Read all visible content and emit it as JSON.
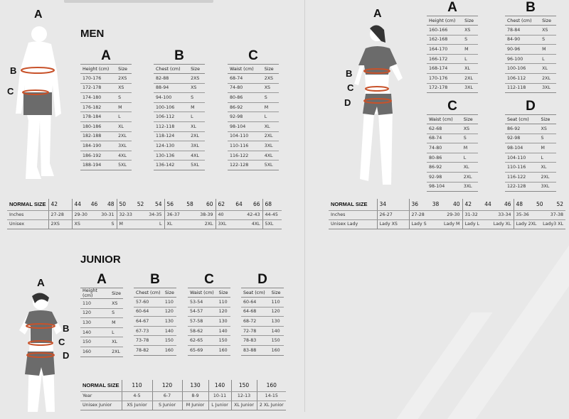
{
  "men": {
    "title": "MEN",
    "figure_labels": [
      "A",
      "B",
      "C"
    ],
    "tables": [
      {
        "letter": "A",
        "headers": [
          "Height (cm)",
          "Size"
        ],
        "rows": [
          [
            "170-176",
            "2XS"
          ],
          [
            "172-178",
            "XS"
          ],
          [
            "174-180",
            "S"
          ],
          [
            "176-182",
            "M"
          ],
          [
            "178-184",
            "L"
          ],
          [
            "180-186",
            "XL"
          ],
          [
            "182-188",
            "2XL"
          ],
          [
            "184-190",
            "3XL"
          ],
          [
            "186-192",
            "4XL"
          ],
          [
            "188-194",
            "5XL"
          ]
        ]
      },
      {
        "letter": "B",
        "headers": [
          "Chest (cm)",
          "Size"
        ],
        "rows": [
          [
            "82-88",
            "2XS"
          ],
          [
            "88-94",
            "XS"
          ],
          [
            "94-100",
            "S"
          ],
          [
            "100-106",
            "M"
          ],
          [
            "106-112",
            "L"
          ],
          [
            "112-118",
            "XL"
          ],
          [
            "118-124",
            "2XL"
          ],
          [
            "124-130",
            "3XL"
          ],
          [
            "130-136",
            "4XL"
          ],
          [
            "136-142",
            "5XL"
          ]
        ]
      },
      {
        "letter": "C",
        "headers": [
          "Waist (cm)",
          "Size"
        ],
        "rows": [
          [
            "68-74",
            "2XS"
          ],
          [
            "74-80",
            "XS"
          ],
          [
            "80-86",
            "S"
          ],
          [
            "86-92",
            "M"
          ],
          [
            "92-98",
            "L"
          ],
          [
            "98-104",
            "XL"
          ],
          [
            "104-110",
            "2XL"
          ],
          [
            "110-116",
            "3XL"
          ],
          [
            "116-122",
            "4XL"
          ],
          [
            "122-128",
            "5XL"
          ]
        ]
      }
    ],
    "normal_size": {
      "label": "NORMAL SIZE",
      "row_labels": [
        "Inches",
        "Unisex"
      ],
      "groups": [
        {
          "sizes": [
            "42"
          ],
          "inches": [
            "27-28"
          ],
          "unisex": [
            "2XS"
          ]
        },
        {
          "sizes": [
            "44",
            "46",
            "48"
          ],
          "inches": [
            "29-30",
            "30-31"
          ],
          "unisex": [
            "XS",
            "S"
          ]
        },
        {
          "sizes": [
            "50",
            "52",
            "54"
          ],
          "inches": [
            "32-33",
            "34-35"
          ],
          "unisex": [
            "M",
            "L"
          ]
        },
        {
          "sizes": [
            "56",
            "58",
            "60"
          ],
          "inches": [
            "36-37",
            "38-39"
          ],
          "unisex": [
            "XL",
            "2XL"
          ]
        },
        {
          "sizes": [
            "62",
            "64",
            "66"
          ],
          "inches": [
            "40",
            "42-43"
          ],
          "unisex": [
            "3XL",
            "4XL"
          ]
        },
        {
          "sizes": [
            "68"
          ],
          "inches": [
            "44-45"
          ],
          "unisex": [
            "5XL"
          ]
        }
      ]
    }
  },
  "women": {
    "figure_labels": [
      "A",
      "B",
      "C",
      "D"
    ],
    "tables": [
      {
        "letter": "A",
        "headers": [
          "Height (cm)",
          "Size"
        ],
        "rows": [
          [
            "160-166",
            "XS"
          ],
          [
            "162-168",
            "S"
          ],
          [
            "164-170",
            "M"
          ],
          [
            "166-172",
            "L"
          ],
          [
            "168-174",
            "XL"
          ],
          [
            "170-176",
            "2XL"
          ],
          [
            "172-178",
            "3XL"
          ]
        ]
      },
      {
        "letter": "B",
        "headers": [
          "Chest (cm)",
          "Size"
        ],
        "rows": [
          [
            "78-84",
            "XS"
          ],
          [
            "84-90",
            "S"
          ],
          [
            "90-96",
            "M"
          ],
          [
            "96-100",
            "L"
          ],
          [
            "100-106",
            "XL"
          ],
          [
            "106-112",
            "2XL"
          ],
          [
            "112-118",
            "3XL"
          ]
        ]
      },
      {
        "letter": "C",
        "headers": [
          "Waist (cm)",
          "Size"
        ],
        "rows": [
          [
            "62-68",
            "XS"
          ],
          [
            "68-74",
            "S"
          ],
          [
            "74-80",
            "M"
          ],
          [
            "80-86",
            "L"
          ],
          [
            "86-92",
            "XL"
          ],
          [
            "92-98",
            "2XL"
          ],
          [
            "98-104",
            "3XL"
          ]
        ]
      },
      {
        "letter": "D",
        "headers": [
          "Seat (cm)",
          "Size"
        ],
        "rows": [
          [
            "86-92",
            "XS"
          ],
          [
            "92-98",
            "S"
          ],
          [
            "98-104",
            "M"
          ],
          [
            "104-110",
            "L"
          ],
          [
            "110-116",
            "XL"
          ],
          [
            "116-122",
            "2XL"
          ],
          [
            "122-128",
            "3XL"
          ]
        ]
      }
    ],
    "normal_size": {
      "label": "NORMAL SIZE",
      "row_labels": [
        "Inches",
        "Unisex Lady"
      ],
      "groups": [
        {
          "sizes": [
            "34"
          ],
          "inches": [
            "26-27"
          ],
          "unisex": [
            "Lady XS"
          ]
        },
        {
          "sizes": [
            "36",
            "38",
            "40"
          ],
          "inches": [
            "27-28",
            "29-30"
          ],
          "unisex": [
            "Lady S",
            "Lady M"
          ]
        },
        {
          "sizes": [
            "42",
            "44",
            "46"
          ],
          "inches": [
            "31-32",
            "33-34"
          ],
          "unisex": [
            "Lady L",
            "Lady XL"
          ]
        },
        {
          "sizes": [
            "48",
            "50",
            "52"
          ],
          "inches": [
            "35-36",
            "37-38"
          ],
          "unisex": [
            "Lady 2XL",
            "Lady3 XL"
          ]
        }
      ]
    }
  },
  "junior": {
    "title": "JUNIOR",
    "figure_labels": [
      "A",
      "B",
      "C",
      "D"
    ],
    "tables": [
      {
        "letter": "A",
        "headers": [
          "Height (cm)",
          "Size"
        ],
        "rows": [
          [
            "110",
            "XS"
          ],
          [
            "120",
            "S"
          ],
          [
            "130",
            "M"
          ],
          [
            "140",
            "L"
          ],
          [
            "150",
            "XL"
          ],
          [
            "160",
            "2XL"
          ]
        ]
      },
      {
        "letter": "B",
        "headers": [
          "Chest (cm)",
          "Size"
        ],
        "rows": [
          [
            "57-60",
            "110"
          ],
          [
            "60-64",
            "120"
          ],
          [
            "64-67",
            "130"
          ],
          [
            "67-73",
            "140"
          ],
          [
            "73-78",
            "150"
          ],
          [
            "78-82",
            "160"
          ]
        ]
      },
      {
        "letter": "C",
        "headers": [
          "Waist (cm)",
          "Size"
        ],
        "rows": [
          [
            "53-54",
            "110"
          ],
          [
            "54-57",
            "120"
          ],
          [
            "57-58",
            "130"
          ],
          [
            "58-62",
            "140"
          ],
          [
            "62-65",
            "150"
          ],
          [
            "65-69",
            "160"
          ]
        ]
      },
      {
        "letter": "D",
        "headers": [
          "Seat (cm)",
          "Size"
        ],
        "rows": [
          [
            "60-64",
            "110"
          ],
          [
            "64-68",
            "120"
          ],
          [
            "68-72",
            "130"
          ],
          [
            "72-78",
            "140"
          ],
          [
            "78-83",
            "150"
          ],
          [
            "83-88",
            "160"
          ]
        ]
      }
    ],
    "normal_size": {
      "label": "NORMAL SIZE",
      "row_labels": [
        "Year",
        "Unisex Junior"
      ],
      "groups": [
        {
          "sizes": [
            "110"
          ],
          "inches": [
            "4-5"
          ],
          "unisex": [
            "XS Junior"
          ]
        },
        {
          "sizes": [
            "120"
          ],
          "inches": [
            "6-7"
          ],
          "unisex": [
            "S Junior"
          ]
        },
        {
          "sizes": [
            "130"
          ],
          "inches": [
            "8-9"
          ],
          "unisex": [
            "M Junior"
          ]
        },
        {
          "sizes": [
            "140"
          ],
          "inches": [
            "10-11"
          ],
          "unisex": [
            "L Junior"
          ]
        },
        {
          "sizes": [
            "150"
          ],
          "inches": [
            "12-13"
          ],
          "unisex": [
            "XL Junior"
          ]
        },
        {
          "sizes": [
            "160"
          ],
          "inches": [
            "14-15"
          ],
          "unisex": [
            "2 XL Junior"
          ]
        }
      ]
    }
  },
  "colors": {
    "background": "#e8e8e8",
    "measure_line": "#c8522a",
    "shorts": "#6b6b6b",
    "figure": "#ffffff"
  }
}
